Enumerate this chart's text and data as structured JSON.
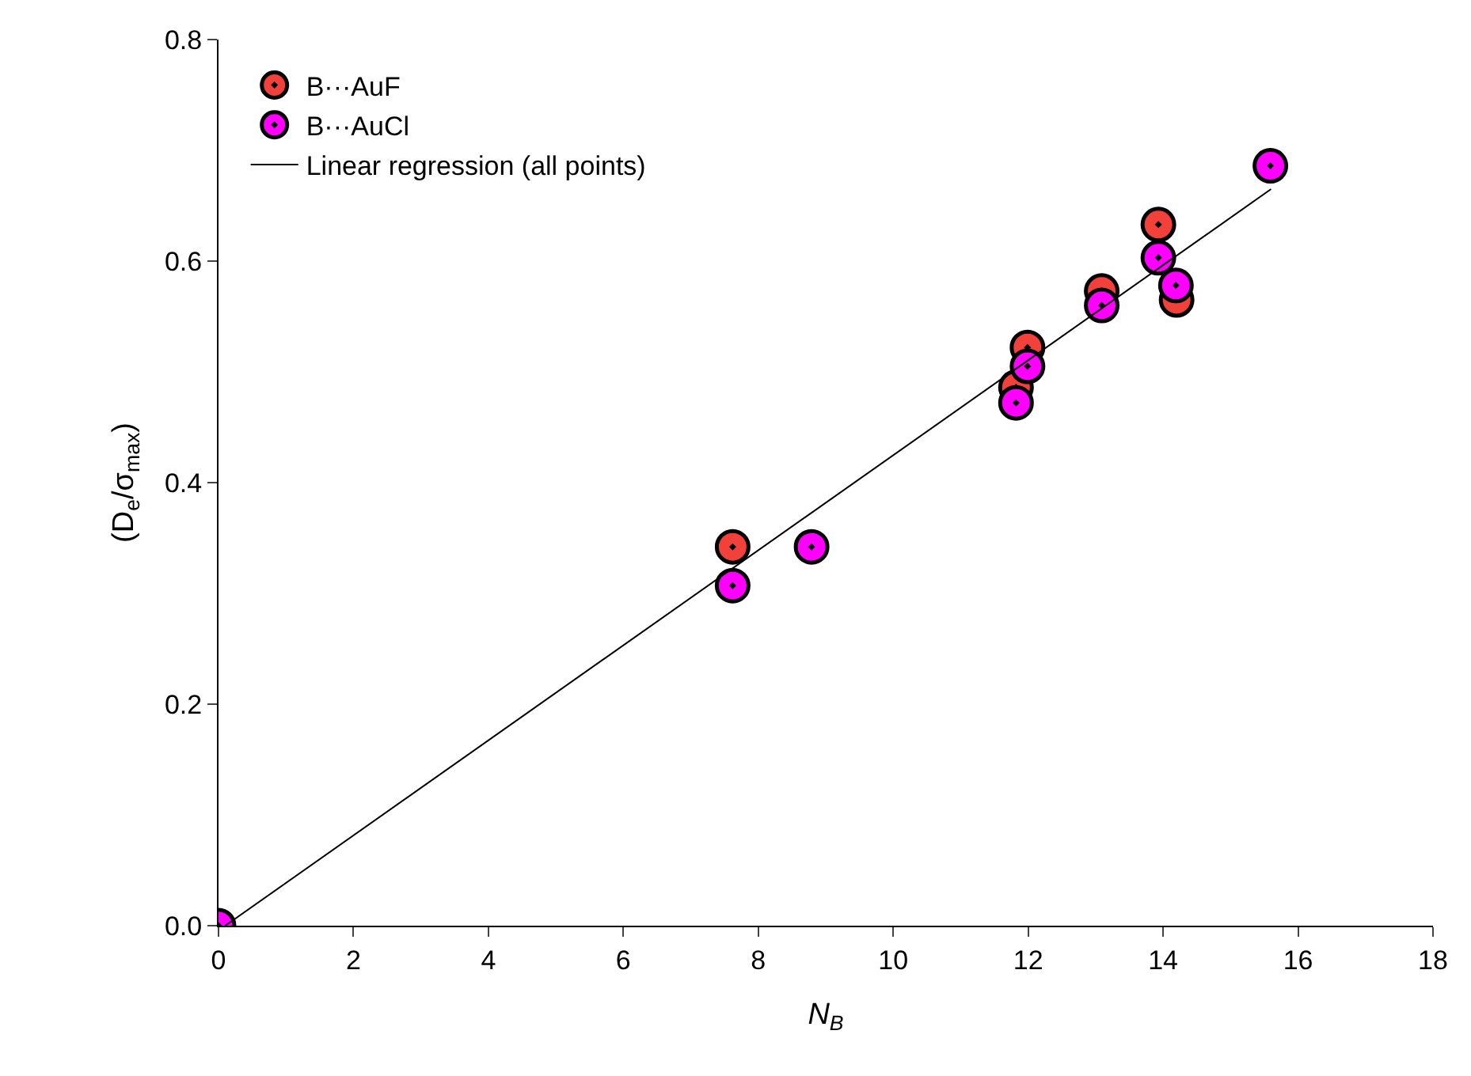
{
  "chart_data": {
    "type": "scatter",
    "xlabel": "N$_{B}$",
    "ylabel": "(D$_{e}$/σ$_{max}$)",
    "xlim": [
      0,
      18
    ],
    "xticks": [
      0,
      2,
      4,
      6,
      8,
      10,
      12,
      14,
      16,
      18
    ],
    "ylim": [
      0,
      0.8
    ],
    "yticks": [
      {
        "value": 0,
        "label": "0.0"
      },
      0.2,
      0.4,
      0.6,
      0.8
    ],
    "grid": false,
    "legend": "top left",
    "marker": "circle",
    "series": [
      {
        "name": "B···AuF",
        "color": "#f2413a",
        "x": [
          7.62,
          11.82,
          11.99,
          13.09,
          13.93,
          14.2
        ],
        "values": [
          0.342,
          0.486,
          0.522,
          0.573,
          0.633,
          0.565
        ]
      },
      {
        "name": "B···AuCl",
        "color": "#ff00ff",
        "x": [
          0,
          7.62,
          8.79,
          11.82,
          11.99,
          13.09,
          13.93,
          14.19,
          15.59
        ],
        "values": [
          0,
          0.307,
          0.342,
          0.472,
          0.505,
          0.56,
          0.603,
          0.578,
          0.686
        ]
      },
      {
        "name": "Linear regression (all points)",
        "type": "line",
        "marker": "none",
        "color": "#000000",
        "line_style": "solid",
        "x": [
          0.1,
          15.6
        ],
        "values": [
          0,
          0.665
        ]
      }
    ]
  }
}
